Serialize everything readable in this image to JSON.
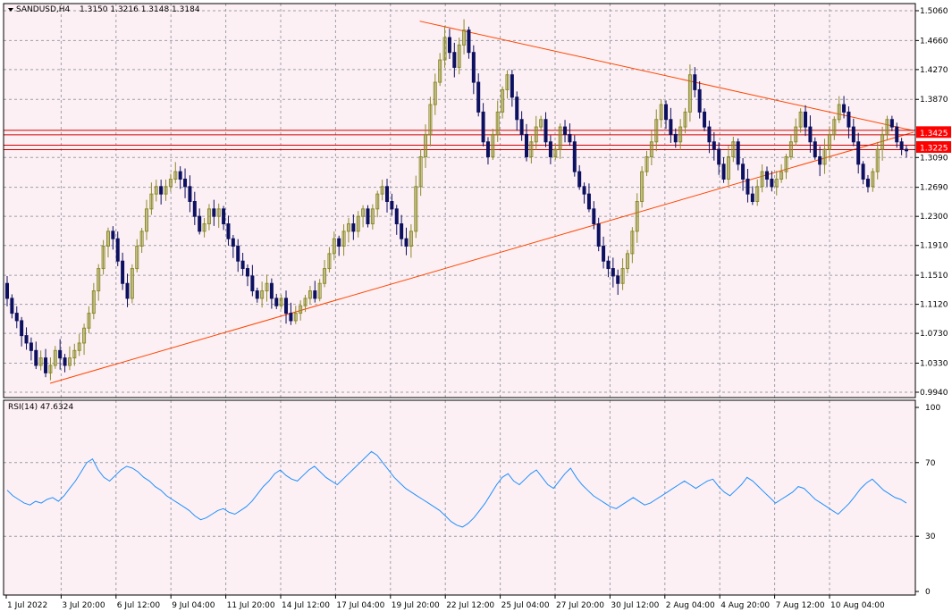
{
  "header": {
    "symbol": "SANDUSD,H4",
    "ohlc": "1.3150 1.3216 1.3148 1.3184",
    "indicator": "RSI(14) 47.6324"
  },
  "colors": {
    "background": "#fdf0f4",
    "grid": "#9aa0a8",
    "bull_candle": "#8b8b2a",
    "bear_candle": "#0d1060",
    "trendline": "#ff4500",
    "level_line": "#cc0000",
    "level_label": "#ff0000",
    "rsi_line": "#1e90ff"
  },
  "chart_data": [
    {
      "type": "candlestick",
      "symbol": "SANDUSD",
      "timeframe": "H4",
      "ylim": [
        0.994,
        1.506
      ],
      "y_ticks": [
        "1.5060",
        "1.4660",
        "1.4270",
        "1.3870",
        "1.3090",
        "1.2690",
        "1.2300",
        "1.1910",
        "1.1510",
        "1.1120",
        "1.0730",
        "1.0330",
        "0.9940"
      ],
      "x_labels": [
        "1 Jul 2022",
        "3 Jul 20:00",
        "6 Jul 12:00",
        "9 Jul 04:00",
        "11 Jul 20:00",
        "14 Jul 12:00",
        "17 Jul 04:00",
        "19 Jul 20:00",
        "22 Jul 12:00",
        "25 Jul 04:00",
        "27 Jul 20:00",
        "30 Jul 12:00",
        "2 Aug 04:00",
        "4 Aug 20:00",
        "7 Aug 12:00",
        "10 Aug 04:00"
      ],
      "price_levels": [
        {
          "value": 1.3425,
          "label": "1.3425"
        },
        {
          "value": 1.3225,
          "label": "1.3225"
        }
      ],
      "trendlines": [
        {
          "from": [
            "3 Jul 00:00",
            1.006
          ],
          "to": [
            "11 Aug 08:00",
            1.343
          ]
        },
        {
          "from": [
            "19 Jul 20:00",
            1.492
          ],
          "to": [
            "11 Aug 08:00",
            1.345
          ]
        }
      ],
      "close_series": [
        1.12,
        1.1,
        1.09,
        1.07,
        1.06,
        1.05,
        1.03,
        1.04,
        1.02,
        1.03,
        1.05,
        1.04,
        1.03,
        1.04,
        1.05,
        1.06,
        1.08,
        1.1,
        1.13,
        1.16,
        1.19,
        1.21,
        1.2,
        1.17,
        1.14,
        1.12,
        1.16,
        1.19,
        1.21,
        1.24,
        1.26,
        1.27,
        1.26,
        1.27,
        1.28,
        1.29,
        1.28,
        1.27,
        1.25,
        1.23,
        1.21,
        1.22,
        1.24,
        1.23,
        1.24,
        1.22,
        1.2,
        1.19,
        1.17,
        1.16,
        1.15,
        1.13,
        1.12,
        1.13,
        1.14,
        1.12,
        1.11,
        1.12,
        1.1,
        1.09,
        1.1,
        1.11,
        1.12,
        1.13,
        1.12,
        1.14,
        1.16,
        1.18,
        1.2,
        1.19,
        1.21,
        1.22,
        1.21,
        1.23,
        1.24,
        1.22,
        1.24,
        1.26,
        1.27,
        1.25,
        1.24,
        1.22,
        1.2,
        1.19,
        1.21,
        1.27,
        1.31,
        1.34,
        1.38,
        1.41,
        1.44,
        1.47,
        1.45,
        1.43,
        1.46,
        1.48,
        1.45,
        1.41,
        1.37,
        1.33,
        1.31,
        1.34,
        1.37,
        1.4,
        1.42,
        1.39,
        1.36,
        1.34,
        1.31,
        1.33,
        1.35,
        1.36,
        1.33,
        1.31,
        1.32,
        1.35,
        1.34,
        1.33,
        1.29,
        1.27,
        1.26,
        1.24,
        1.22,
        1.19,
        1.17,
        1.16,
        1.15,
        1.14,
        1.16,
        1.18,
        1.21,
        1.25,
        1.29,
        1.31,
        1.33,
        1.36,
        1.38,
        1.36,
        1.34,
        1.33,
        1.35,
        1.37,
        1.42,
        1.4,
        1.37,
        1.35,
        1.33,
        1.32,
        1.3,
        1.28,
        1.31,
        1.33,
        1.3,
        1.28,
        1.26,
        1.25,
        1.27,
        1.29,
        1.28,
        1.27,
        1.28,
        1.29,
        1.31,
        1.33,
        1.35,
        1.37,
        1.35,
        1.33,
        1.31,
        1.3,
        1.32,
        1.34,
        1.36,
        1.38,
        1.37,
        1.35,
        1.33,
        1.3,
        1.28,
        1.27,
        1.29,
        1.32,
        1.34,
        1.36,
        1.35,
        1.33,
        1.32,
        1.318
      ]
    },
    {
      "type": "line",
      "indicator": "RSI(14)",
      "last_value": 47.6324,
      "ylim": [
        0,
        100
      ],
      "y_ticks": [
        "100",
        "70",
        "30",
        "0"
      ],
      "values": [
        55,
        52,
        50,
        48,
        47,
        49,
        48,
        50,
        51,
        49,
        52,
        56,
        60,
        65,
        70,
        72,
        66,
        62,
        60,
        63,
        66,
        68,
        67,
        65,
        62,
        60,
        57,
        55,
        52,
        50,
        48,
        46,
        44,
        41,
        39,
        40,
        42,
        44,
        45,
        43,
        42,
        44,
        46,
        49,
        53,
        57,
        60,
        64,
        66,
        63,
        61,
        60,
        63,
        66,
        68,
        65,
        62,
        60,
        58,
        61,
        64,
        67,
        70,
        73,
        76,
        74,
        70,
        66,
        62,
        59,
        56,
        54,
        52,
        50,
        48,
        46,
        44,
        41,
        38,
        36,
        35,
        37,
        40,
        44,
        48,
        53,
        58,
        62,
        64,
        60,
        58,
        61,
        64,
        66,
        62,
        58,
        56,
        60,
        64,
        67,
        62,
        58,
        55,
        52,
        50,
        48,
        46,
        45,
        47,
        49,
        51,
        49,
        47,
        48,
        50,
        52,
        54,
        56,
        58,
        60,
        58,
        56,
        58,
        60,
        61,
        57,
        54,
        52,
        55,
        58,
        62,
        60,
        57,
        54,
        51,
        48,
        50,
        52,
        54,
        57,
        56,
        53,
        50,
        48,
        46,
        44,
        42,
        45,
        48,
        52,
        56,
        59,
        61,
        58,
        55,
        53,
        51,
        50,
        48
      ]
    }
  ]
}
